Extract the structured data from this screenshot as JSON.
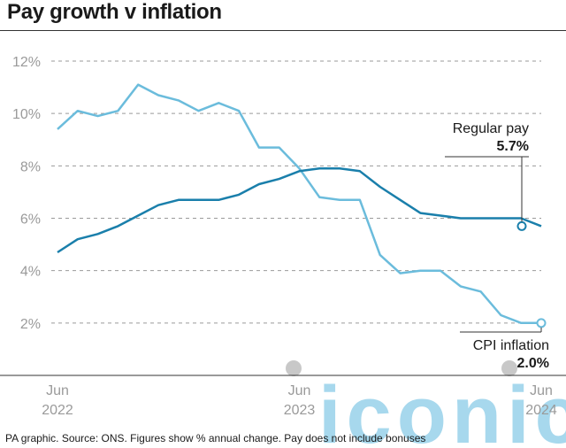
{
  "title": "Pay growth v inflation",
  "footer": "PA graphic. Source: ONS. Figures show % annual change. Pay does not include bonuses",
  "colors": {
    "regular_pay": "#1a7fab",
    "cpi": "#6bbcdc",
    "grid": "#9a9a9a",
    "watermark": "#5fb8de"
  },
  "watermark_text": "iconic",
  "chart_data": {
    "type": "line",
    "title": "Pay growth v inflation",
    "xlabel": "",
    "ylabel": "",
    "ylim": [
      0,
      12
    ],
    "yticks": [
      2,
      4,
      6,
      8,
      10,
      12
    ],
    "ytick_labels": [
      "2%",
      "4%",
      "6%",
      "8%",
      "10%",
      "12%"
    ],
    "xticks": [
      {
        "index": 0,
        "line1": "Jun",
        "line2": "2022"
      },
      {
        "index": 12,
        "line1": "Jun",
        "line2": "2023"
      },
      {
        "index": 24,
        "line1": "Jun",
        "line2": "2024"
      }
    ],
    "grid": "horizontal-dashed",
    "x": [
      "Jun 2022",
      "Jul 2022",
      "Aug 2022",
      "Sep 2022",
      "Oct 2022",
      "Nov 2022",
      "Dec 2022",
      "Jan 2023",
      "Feb 2023",
      "Mar 2023",
      "Apr 2023",
      "May 2023",
      "Jun 2023",
      "Jul 2023",
      "Aug 2023",
      "Sep 2023",
      "Oct 2023",
      "Nov 2023",
      "Dec 2023",
      "Jan 2024",
      "Feb 2024",
      "Mar 2024",
      "Apr 2024",
      "May 2024",
      "Jun 2024"
    ],
    "series": [
      {
        "name": "Regular pay",
        "callout_value": "5.7%",
        "values": [
          4.7,
          5.2,
          5.4,
          5.7,
          6.1,
          6.5,
          6.7,
          6.7,
          6.7,
          6.9,
          7.3,
          7.5,
          7.8,
          7.9,
          7.9,
          7.8,
          7.2,
          6.7,
          6.2,
          6.1,
          6.0,
          6.0,
          6.0,
          6.0,
          5.7
        ]
      },
      {
        "name": "CPI inflation",
        "callout_value": "2.0%",
        "values": [
          9.4,
          10.1,
          9.9,
          10.1,
          11.1,
          10.7,
          10.5,
          10.1,
          10.4,
          10.1,
          8.7,
          8.7,
          7.9,
          6.8,
          6.7,
          6.7,
          4.6,
          3.9,
          4.0,
          4.0,
          3.4,
          3.2,
          2.3,
          2.0,
          2.0
        ]
      }
    ]
  }
}
